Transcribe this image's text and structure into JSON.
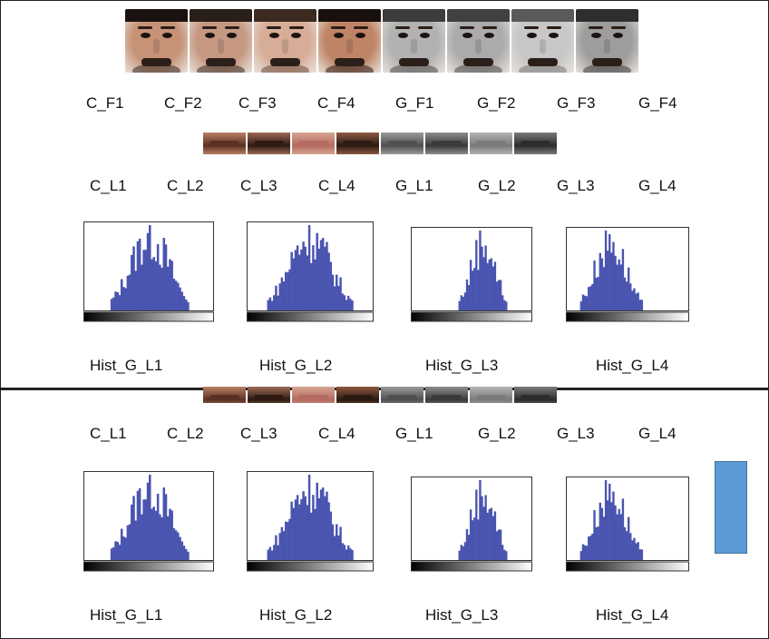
{
  "faces": [
    {
      "id": "C_F1",
      "skin": "#c79377",
      "hair": "#1a1210",
      "beard": "#3a2a22"
    },
    {
      "id": "C_F2",
      "skin": "#c69882",
      "hair": "#2a1e18",
      "beard": "#3b2b23"
    },
    {
      "id": "C_F3",
      "skin": "#d8ad98",
      "hair": "#3a2a20",
      "beard": "#6b4c3e"
    },
    {
      "id": "C_F4",
      "skin": "#bf8466",
      "hair": "#18100d",
      "beard": "#2a1a12"
    },
    {
      "id": "G_F1",
      "skin": "#b2b2b2",
      "hair": "#3c3c3c",
      "beard": "#4a4a4a"
    },
    {
      "id": "G_F2",
      "skin": "#ababab",
      "hair": "#404040",
      "beard": "#4d4d4d"
    },
    {
      "id": "G_F3",
      "skin": "#c7c7c7",
      "hair": "#5a5a5a",
      "beard": "#777777"
    },
    {
      "id": "G_F4",
      "skin": "#9d9d9d",
      "hair": "#2e2e2e",
      "beard": "#3d3d3d"
    }
  ],
  "face_labels": [
    "C_F1",
    "C_F2",
    "C_F3",
    "C_F4",
    "G_F1",
    "G_F2",
    "G_F3",
    "G_F4"
  ],
  "lips": [
    {
      "skin": "#b88064",
      "mouth": "#5a3022"
    },
    {
      "skin": "#9c6a55",
      "mouth": "#2e1a12"
    },
    {
      "skin": "#d6a48f",
      "mouth": "#b56a62"
    },
    {
      "skin": "#8e5a42",
      "mouth": "#2a1a12"
    },
    {
      "skin": "#9a9a9a",
      "mouth": "#505050"
    },
    {
      "skin": "#8d8d8d",
      "mouth": "#3a3a3a"
    },
    {
      "skin": "#b3b3b3",
      "mouth": "#7a7a7a"
    },
    {
      "skin": "#7a7a7a",
      "mouth": "#2c2c2c"
    }
  ],
  "lip_labels_top": [
    "C_L1",
    "C_L2",
    "C_L3",
    "C_L4",
    "G_L1",
    "G_L2",
    "G_L3",
    "G_L4"
  ],
  "lip_labels_bottom": [
    "C_L1",
    "C_L2",
    "C_L3",
    "C_L4",
    "G_L1",
    "G_L2",
    "G_L3",
    "G_L4"
  ],
  "hist_labels_top": [
    "Hist_G_L1",
    "Hist_G_L2",
    "Hist_G_L3",
    "Hist_G_L4"
  ],
  "hist_labels_bottom": [
    "Hist_G_L1",
    "Hist_G_L2",
    "Hist_G_L3",
    "Hist_G_L4"
  ],
  "colors": {
    "bar": "#4a55b0",
    "accent_block": "#5b9bd5"
  },
  "chart_data": [
    {
      "type": "bar",
      "name": "Hist_G_L1",
      "x_range": [
        0,
        255
      ],
      "center": 128,
      "spread": 0.9
    },
    {
      "type": "bar",
      "name": "Hist_G_L2",
      "x_range": [
        0,
        255
      ],
      "center": 125,
      "spread": 1.0
    },
    {
      "type": "bar",
      "name": "Hist_G_L3",
      "x_range": [
        0,
        255
      ],
      "center": 150,
      "spread": 0.6
    },
    {
      "type": "bar",
      "name": "Hist_G_L4",
      "x_range": [
        0,
        255
      ],
      "center": 90,
      "spread": 0.75
    }
  ]
}
